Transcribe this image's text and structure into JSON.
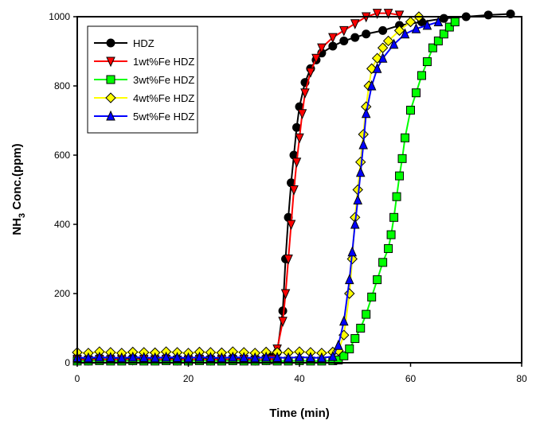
{
  "chart_data": {
    "type": "line",
    "title": "",
    "xlabel": "Time (min)",
    "ylabel_main": "NH",
    "ylabel_sub": "3",
    "ylabel_rest": " Conc.(ppm)",
    "xlim": [
      0,
      80
    ],
    "ylim": [
      0,
      1000
    ],
    "xticks": [
      "0",
      "20",
      "40",
      "60",
      "80"
    ],
    "yticks": [
      "0",
      "200",
      "400",
      "600",
      "800",
      "1000"
    ],
    "legend": "top-left",
    "series": [
      {
        "name": "HDZ",
        "color": "#000000",
        "marker": "circle",
        "x": [
          0,
          2,
          4,
          6,
          8,
          10,
          12,
          14,
          16,
          18,
          20,
          22,
          24,
          26,
          28,
          30,
          32,
          34,
          35,
          36,
          37,
          37.5,
          38,
          38.5,
          39,
          39.5,
          40,
          41,
          42,
          43,
          44,
          46,
          48,
          50,
          52,
          55,
          58,
          62,
          66,
          70,
          74,
          78
        ],
        "y": [
          15,
          12,
          15,
          14,
          12,
          15,
          13,
          14,
          15,
          12,
          14,
          15,
          13,
          14,
          15,
          12,
          14,
          15,
          18,
          30,
          150,
          300,
          420,
          520,
          600,
          680,
          740,
          810,
          850,
          875,
          895,
          915,
          930,
          940,
          950,
          960,
          975,
          985,
          995,
          1000,
          1005,
          1008
        ]
      },
      {
        "name": "1wt%Fe HDZ",
        "color": "#ff0000",
        "marker": "triangle-down",
        "x": [
          0,
          2,
          4,
          6,
          8,
          10,
          12,
          14,
          16,
          18,
          20,
          22,
          24,
          26,
          28,
          30,
          32,
          34,
          35,
          36,
          37,
          37.5,
          38,
          38.5,
          39,
          39.5,
          40,
          40.5,
          41,
          42,
          43,
          44,
          46,
          48,
          50,
          52,
          54,
          56,
          58
        ],
        "y": [
          10,
          8,
          10,
          9,
          10,
          8,
          10,
          9,
          10,
          8,
          9,
          10,
          8,
          10,
          9,
          10,
          8,
          9,
          10,
          40,
          120,
          200,
          300,
          400,
          500,
          580,
          650,
          720,
          780,
          840,
          880,
          910,
          940,
          960,
          980,
          1000,
          1010,
          1010,
          1005
        ]
      },
      {
        "name": "3wt%Fe HDZ",
        "color": "#00ff00",
        "marker": "square",
        "x": [
          0,
          2,
          4,
          6,
          8,
          10,
          12,
          14,
          16,
          18,
          20,
          22,
          24,
          26,
          28,
          30,
          32,
          34,
          36,
          38,
          40,
          42,
          44,
          46,
          47,
          48,
          49,
          50,
          51,
          52,
          53,
          54,
          55,
          56,
          56.5,
          57,
          57.5,
          58,
          58.5,
          59,
          60,
          61,
          62,
          63,
          64,
          65,
          66,
          67,
          68
        ],
        "y": [
          5,
          5,
          6,
          5,
          5,
          6,
          5,
          5,
          6,
          5,
          5,
          6,
          5,
          5,
          6,
          5,
          5,
          6,
          5,
          5,
          6,
          5,
          5,
          6,
          8,
          20,
          40,
          70,
          100,
          140,
          190,
          240,
          290,
          330,
          370,
          420,
          480,
          540,
          590,
          650,
          730,
          780,
          830,
          870,
          910,
          930,
          950,
          970,
          985
        ]
      },
      {
        "name": "4wt%Fe HDZ",
        "color": "#ffff00",
        "marker": "diamond",
        "x": [
          0,
          2,
          4,
          6,
          8,
          10,
          12,
          14,
          16,
          18,
          20,
          22,
          24,
          26,
          28,
          30,
          32,
          34,
          36,
          38,
          40,
          42,
          44,
          46,
          47,
          48,
          49,
          49.5,
          50,
          50.5,
          51,
          51.5,
          52,
          52.5,
          53,
          54,
          55,
          56,
          58,
          60,
          61.5
        ],
        "y": [
          30,
          28,
          32,
          30,
          28,
          31,
          30,
          29,
          32,
          30,
          28,
          31,
          30,
          29,
          32,
          30,
          28,
          31,
          30,
          29,
          32,
          30,
          28,
          31,
          35,
          80,
          200,
          300,
          420,
          500,
          580,
          660,
          740,
          800,
          850,
          880,
          910,
          930,
          960,
          985,
          1000
        ]
      },
      {
        "name": "5wt%Fe HDZ",
        "color": "#0000ff",
        "marker": "triangle-up",
        "x": [
          0,
          2,
          4,
          6,
          8,
          10,
          12,
          14,
          16,
          18,
          20,
          22,
          24,
          26,
          28,
          30,
          32,
          34,
          36,
          38,
          40,
          42,
          44,
          46,
          47,
          48,
          49,
          49.5,
          50,
          50.5,
          51,
          51.5,
          52,
          53,
          54,
          55,
          57,
          59,
          61,
          63,
          65
        ],
        "y": [
          15,
          14,
          16,
          15,
          14,
          16,
          15,
          14,
          16,
          15,
          14,
          16,
          15,
          14,
          16,
          15,
          14,
          16,
          15,
          14,
          16,
          15,
          14,
          18,
          50,
          120,
          240,
          320,
          400,
          470,
          550,
          630,
          720,
          800,
          850,
          880,
          920,
          950,
          965,
          975,
          985
        ]
      }
    ]
  }
}
